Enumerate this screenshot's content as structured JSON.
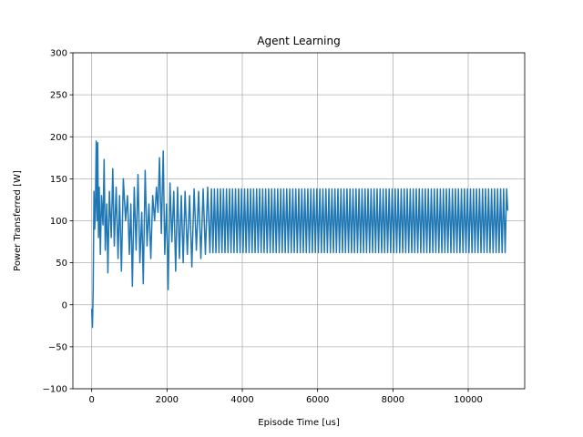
{
  "chart_data": {
    "type": "line",
    "title": "Agent Learning",
    "xlabel": "Episode Time [us]",
    "ylabel": "Power Transferred [W]",
    "xlim": [
      -500,
      11500
    ],
    "ylim": [
      -100,
      300
    ],
    "xticks": [
      0,
      2000,
      4000,
      6000,
      8000,
      10000
    ],
    "yticks": [
      -100,
      -50,
      0,
      50,
      100,
      150,
      200,
      250,
      300
    ],
    "grid": true,
    "series": [
      {
        "color": "#1f77b4",
        "x_start": 0,
        "x_end": 11050,
        "approx_points": [
          [
            0,
            -5
          ],
          [
            20,
            -27
          ],
          [
            40,
            20
          ],
          [
            60,
            135
          ],
          [
            80,
            90
          ],
          [
            100,
            120
          ],
          [
            120,
            195
          ],
          [
            140,
            100
          ],
          [
            160,
            193
          ],
          [
            180,
            80
          ],
          [
            200,
            140
          ],
          [
            230,
            60
          ],
          [
            260,
            130
          ],
          [
            300,
            95
          ],
          [
            330,
            173
          ],
          [
            360,
            65
          ],
          [
            400,
            120
          ],
          [
            430,
            38
          ],
          [
            470,
            135
          ],
          [
            520,
            80
          ],
          [
            560,
            162
          ],
          [
            600,
            70
          ],
          [
            650,
            140
          ],
          [
            700,
            55
          ],
          [
            740,
            130
          ],
          [
            790,
            40
          ],
          [
            840,
            150
          ],
          [
            900,
            100
          ],
          [
            950,
            130
          ],
          [
            1000,
            60
          ],
          [
            1040,
            120
          ],
          [
            1080,
            22
          ],
          [
            1130,
            140
          ],
          [
            1180,
            65
          ],
          [
            1230,
            155
          ],
          [
            1280,
            50
          ],
          [
            1330,
            110
          ],
          [
            1370,
            25
          ],
          [
            1420,
            160
          ],
          [
            1470,
            70
          ],
          [
            1520,
            120
          ],
          [
            1570,
            55
          ],
          [
            1620,
            130
          ],
          [
            1670,
            100
          ],
          [
            1720,
            140
          ],
          [
            1760,
            110
          ],
          [
            1800,
            175
          ],
          [
            1850,
            85
          ],
          [
            1900,
            183
          ],
          [
            1940,
            60
          ],
          [
            1990,
            120
          ],
          [
            2030,
            18
          ],
          [
            2080,
            145
          ],
          [
            2130,
            75
          ],
          [
            2180,
            135
          ],
          [
            2230,
            40
          ],
          [
            2280,
            140
          ],
          [
            2330,
            55
          ],
          [
            2380,
            130
          ],
          [
            2430,
            50
          ],
          [
            2480,
            135
          ],
          [
            2540,
            60
          ],
          [
            2600,
            130
          ],
          [
            2660,
            45
          ],
          [
            2720,
            138
          ],
          [
            2780,
            65
          ],
          [
            2840,
            135
          ],
          [
            2900,
            55
          ],
          [
            2960,
            138
          ],
          [
            3020,
            60
          ],
          [
            3080,
            140
          ],
          [
            3140,
            62
          ]
        ],
        "steady_oscillation": {
          "from": 3140,
          "to": 11050,
          "high": 138,
          "low": 62
        }
      }
    ]
  }
}
